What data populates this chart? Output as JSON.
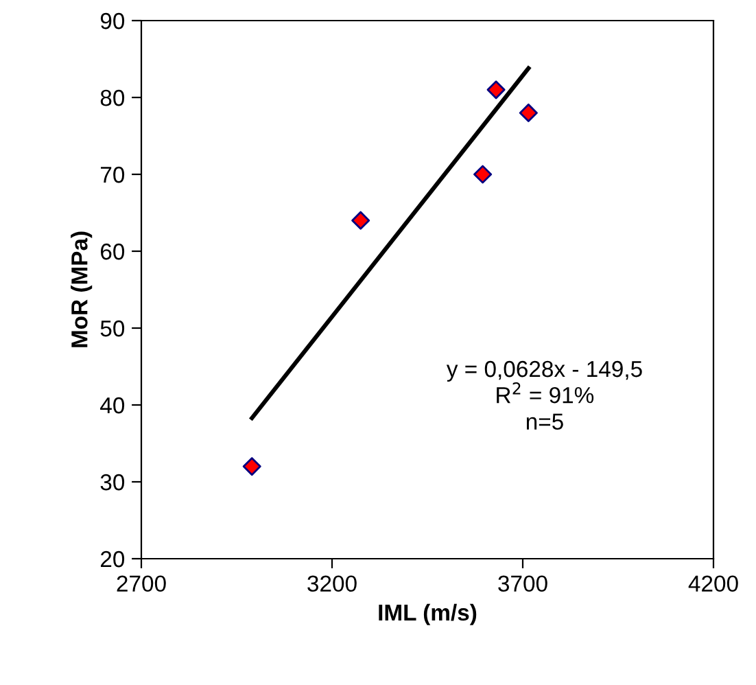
{
  "chart_data": {
    "type": "scatter",
    "xlabel": "IML (m/s)",
    "ylabel": "MoR (MPa)",
    "xlim": [
      2700,
      4200
    ],
    "xticks": [
      2700,
      3200,
      3700,
      4200
    ],
    "ylim": [
      20,
      90
    ],
    "yticks": [
      20,
      30,
      40,
      50,
      60,
      70,
      80,
      90
    ],
    "grid": false,
    "legend": false,
    "series": [
      {
        "marker": "diamond",
        "color": "#ff0000",
        "x": [
          2990,
          3275,
          3595,
          3630,
          3715
        ],
        "values": [
          32,
          64,
          70,
          81,
          78
        ]
      },
      {
        "type": "line",
        "color": "#000000",
        "line_style": "solid",
        "x": [
          2990,
          3715
        ],
        "values": [
          38.3,
          83.8
        ]
      }
    ],
    "annotations": [
      "y = 0,0628x - 149,5\nR$^{2}$ = 91%\nn=5"
    ]
  }
}
